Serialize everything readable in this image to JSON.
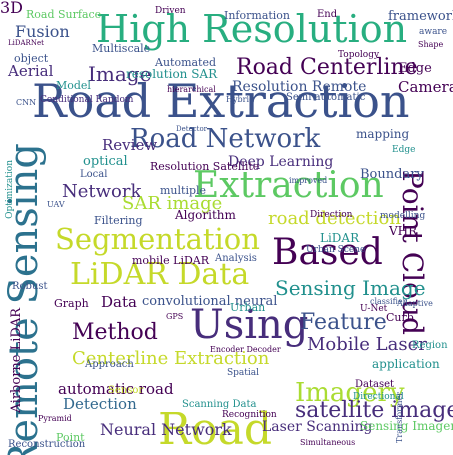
{
  "colors": [
    "#440154",
    "#3b528b",
    "#21908d",
    "#5dc963",
    "#c5d92a",
    "#2c728e",
    "#472d7b",
    "#28ae80",
    "#aadc32",
    "#31688e"
  ],
  "words": {
    "road_extraction": "Road Extraction",
    "road": "Road",
    "high_resolution": "High Resolution",
    "extraction": "Extraction",
    "based": "Based",
    "using": "Using",
    "remote_sensing": "Remote Sensing",
    "road_network": "Road Network",
    "lidar_data": "LiDAR Data",
    "segmentation": "Segmentation",
    "imagery": "Imagery",
    "point_cloud": "Point Cloud",
    "satellite_images": "satellite images",
    "road_centerline": "Road Centerline",
    "sensing_image": "Sensing Image",
    "network": "Network",
    "mobile_laser": "Mobile Laser",
    "method": "Method",
    "image": "Image",
    "feature": "Feature",
    "centerline_extraction": "Centerline Extraction",
    "neural_network": "Neural Network",
    "laser_scanning": "Laser Scanning",
    "detection": "Detection",
    "automatic_road": "automatic road",
    "sar_image": "SAR image",
    "road_detection": "road detection",
    "deep_learning": "Deep Learning",
    "resolution_remote": "Resolution Remote",
    "review": "Review",
    "data": "Data",
    "convolutional_neural": "convolutional neural",
    "camera": "Camera",
    "fusion": "Fusion",
    "aerial": "Aerial",
    "object": "object",
    "information": "Information",
    "framework": "framework",
    "road_surface": "Road Surface",
    "multiscale": "Multiscale",
    "automated": "Automated",
    "resolution_sar": "resolution SAR",
    "model": "Model",
    "conditional_random": "Conditional Random",
    "edge": "Edge",
    "boundary": "Boundary",
    "vhr": "VHR",
    "lidar": "LiDAR",
    "multiple": "multiple",
    "algorithm": "Algorithm",
    "filtering": "Filtering",
    "resolution_satellite": "Resolution Satellite",
    "optical": "optical",
    "local": "Local",
    "mobile_lidar": "mobile LiDAR",
    "analysis": "Analysis",
    "graph": "Graph",
    "approach": "Approach",
    "mapping": "mapping",
    "urban": "Urban",
    "curb": "Curb",
    "application": "application",
    "sensing_imagery": "Sensing Imagery",
    "reconstruction": "Reconstruction",
    "airborne_lidar": "Airborne LiDAR",
    "robust": "Robust",
    "point": "Point",
    "scanning_data": "Scanning Data",
    "dataset": "Dataset",
    "region": "Region",
    "recognition": "Recognition",
    "topology": "Topology",
    "semi_automatic": "Semi automatic",
    "three_d": "3D",
    "cnn": "CNN",
    "gps": "GPS",
    "sensor": "Sensor",
    "spatial": "Spatial",
    "directional": "Directional",
    "lidarnet": "LiDARNet",
    "hybrid": "Hybrid",
    "hierarchical": "hierarchical",
    "detector": "Detector",
    "driven": "Driven",
    "urban_scene": "Urban Scene",
    "direction": "Direction",
    "modelling": "modelling",
    "pyramid": "Pyramid",
    "classifier": "classifier",
    "simultaneous": "Simultaneous",
    "optimization": "Optimization",
    "uav": "UAV",
    "end": "End",
    "aware": "aware",
    "shape": "Shape",
    "edge_word": "Edge",
    "improved": "improved",
    "unet": "U-Net",
    "adaptive": "Adaptive",
    "encoder": "Encoder Decoder",
    "transformer": "Transformer"
  }
}
